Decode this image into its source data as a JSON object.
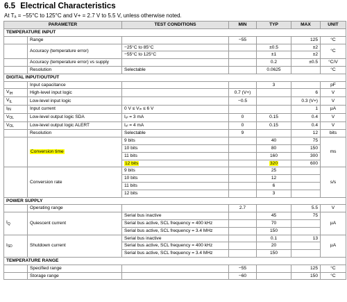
{
  "heading": {
    "number": "6.5",
    "title": "Electrical Characteristics"
  },
  "subheading": "At Tₐ = −55°C to 125°C and V+ = 2.7 V to 5.5 V, unless otherwise noted.",
  "columns": {
    "parameter": "PARAMETER",
    "conditions": "TEST CONDITIONS",
    "min": "MIN",
    "typ": "TYP",
    "max": "MAX",
    "unit": "UNIT"
  },
  "sections": {
    "temperature_input": "TEMPERATURE INPUT",
    "digital_io": "DIGITAL INPUT/OUTPUT",
    "power_supply": "POWER SUPPLY",
    "temperature_range": "TEMPERATURE RANGE"
  },
  "temp_input": {
    "range": {
      "param": "Range",
      "min": "−55",
      "max": "125",
      "unit": "°C"
    },
    "accuracy": {
      "param": "Accuracy (temperature error)",
      "cond1": "−25°C to 85°C",
      "typ1": "±0.5",
      "max1": "±2",
      "cond2": "−55°C to 125°C",
      "typ2": "±1",
      "max2": "±2",
      "unit": "°C"
    },
    "vs_supply": {
      "param": "Accuracy (temperature error) vs supply",
      "typ": "0.2",
      "max": "±0.5",
      "unit": "°C/V"
    },
    "resolution": {
      "param": "Resolution",
      "cond": "Selectable",
      "typ": "0.0625",
      "unit": "°C"
    }
  },
  "digital": {
    "cap": {
      "param": "Input capacitance",
      "typ": "3",
      "unit": "pF"
    },
    "vih": {
      "sym": "V",
      "sub": "IH",
      "param": "High-level input logic",
      "min": "0.7 (V+)",
      "max": "6",
      "unit": "V"
    },
    "vil": {
      "sym": "V",
      "sub": "IL",
      "param": "Low-level input logic",
      "min": "−0.5",
      "max": "0.3 (V+)",
      "unit": "V"
    },
    "iin": {
      "sym": "I",
      "sub": "IN",
      "param": "Input current",
      "cond": "0 V ≤ Vᵢₙ ≤ 6 V",
      "max": "1",
      "unit": "µA"
    },
    "vol_sda": {
      "sym": "V",
      "sub": "OL",
      "param": "Low-level output logic SDA",
      "cond": "Iₒₗ = 3 mA",
      "min": "0",
      "typ": "0.15",
      "max": "0.4",
      "unit": "V"
    },
    "vol_alert": {
      "sym": "V",
      "sub": "OL",
      "param": "Low-level output logic ALERT",
      "cond": "Iₒₗ = 4 mA",
      "min": "0",
      "typ": "0.15",
      "max": "0.4",
      "unit": "V"
    },
    "resolution": {
      "param": "Resolution",
      "cond": "Selectable",
      "min": "9",
      "max": "12",
      "unit": "bits"
    },
    "conversion_time": {
      "param": "Conversion time",
      "unit": "ms",
      "rows": [
        {
          "cond": "9 bits",
          "typ": "40",
          "max": "75"
        },
        {
          "cond": "10 bits",
          "typ": "80",
          "max": "150"
        },
        {
          "cond": "11 bits",
          "typ": "160",
          "max": "300"
        },
        {
          "cond": "12 bits",
          "typ": "320",
          "max": "600"
        }
      ]
    },
    "conversion_rate": {
      "param": "Conversion rate",
      "unit": "s/s",
      "rows": [
        {
          "cond": "9 bits",
          "typ": "25"
        },
        {
          "cond": "10 bits",
          "typ": "12"
        },
        {
          "cond": "11 bits",
          "typ": "6"
        },
        {
          "cond": "12 bits",
          "typ": "3"
        }
      ]
    }
  },
  "power": {
    "range": {
      "param": "Operating range",
      "min": "2.7",
      "max": "5.5",
      "unit": "V"
    },
    "iq": {
      "sym": "I",
      "sub": "Q",
      "param": "Quiescent current",
      "unit": "µA",
      "rows": [
        {
          "cond": "Serial bus inactive",
          "typ": "45",
          "max": "75"
        },
        {
          "cond": "Serial bus active, SCL frequency = 400 kHz",
          "typ": "70"
        },
        {
          "cond": "Serial bus active, SCL frequency = 3.4 MHz",
          "typ": "150"
        }
      ]
    },
    "isd": {
      "sym": "I",
      "sub": "SD",
      "param": "Shutdown current",
      "unit": "µA",
      "rows": [
        {
          "cond": "Serial bus inactive",
          "typ": "0.1",
          "max": "13"
        },
        {
          "cond": "Serial bus active, SCL frequency = 400 kHz",
          "typ": "20"
        },
        {
          "cond": "Serial bus active, SCL frequency = 3.4 MHz",
          "typ": "150"
        }
      ]
    }
  },
  "trange": {
    "specified": {
      "param": "Specified range",
      "min": "−55",
      "max": "125",
      "unit": "°C"
    },
    "storage": {
      "param": "Storage range",
      "min": "−60",
      "max": "150",
      "unit": "°C"
    }
  }
}
